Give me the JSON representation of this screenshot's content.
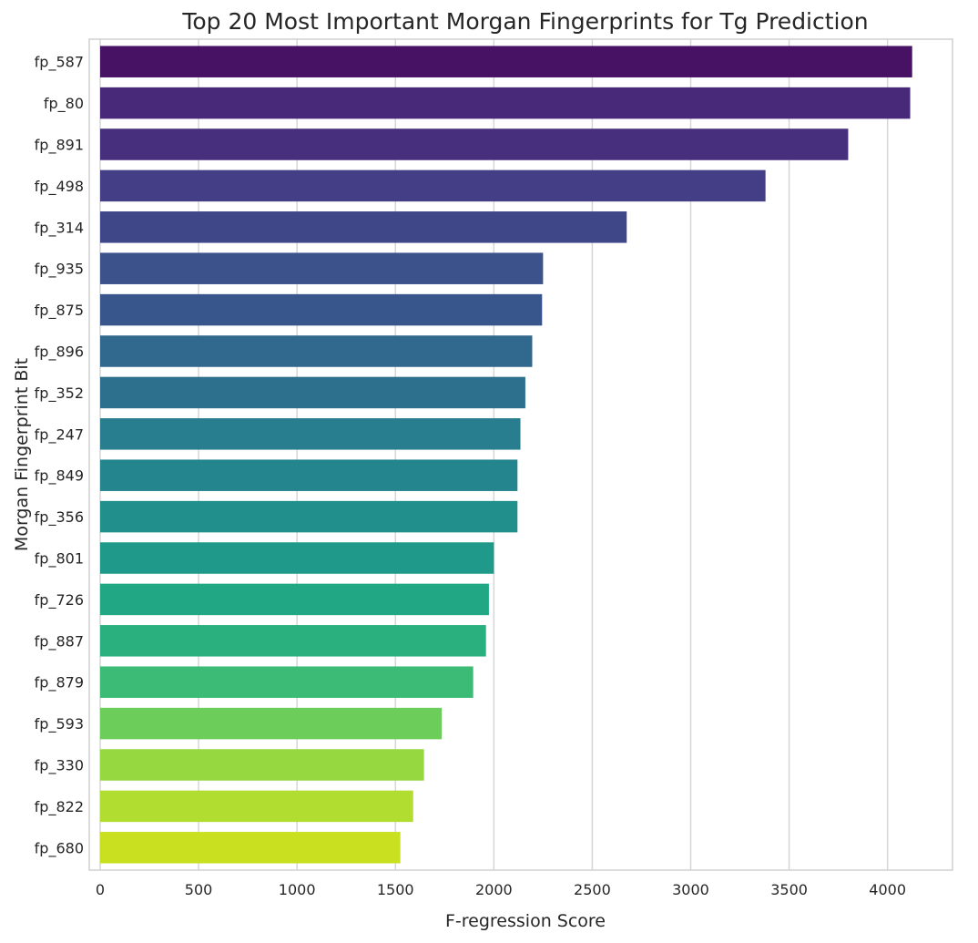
{
  "chart_data": {
    "type": "bar",
    "orientation": "horizontal",
    "title": "Top 20 Most Important Morgan Fingerprints for Tg Prediction",
    "xlabel": "F-regression Score",
    "ylabel": "Morgan Fingerprint Bit",
    "xlim": [
      0,
      4330
    ],
    "xticks": [
      0,
      500,
      1000,
      1500,
      2000,
      2500,
      3000,
      3500,
      4000
    ],
    "grid": "vertical",
    "colormap": "viridis",
    "categories": [
      "fp_587",
      "fp_80",
      "fp_891",
      "fp_498",
      "fp_314",
      "fp_935",
      "fp_875",
      "fp_896",
      "fp_352",
      "fp_247",
      "fp_849",
      "fp_356",
      "fp_801",
      "fp_726",
      "fp_887",
      "fp_879",
      "fp_593",
      "fp_330",
      "fp_822",
      "fp_680"
    ],
    "values": [
      4125,
      4115,
      3800,
      3380,
      2675,
      2250,
      2245,
      2195,
      2160,
      2135,
      2120,
      2120,
      2000,
      1975,
      1960,
      1895,
      1735,
      1645,
      1590,
      1525
    ],
    "colors": [
      "#471164",
      "#482878",
      "#472f7d",
      "#433e85",
      "#3f4788",
      "#3b528b",
      "#39568c",
      "#31688e",
      "#2d708e",
      "#287d8e",
      "#25858e",
      "#21908d",
      "#1f9a8a",
      "#22a785",
      "#2ab07f",
      "#3bbb75",
      "#6ccd5a",
      "#95d840",
      "#b0dd2f",
      "#c8e020"
    ]
  }
}
